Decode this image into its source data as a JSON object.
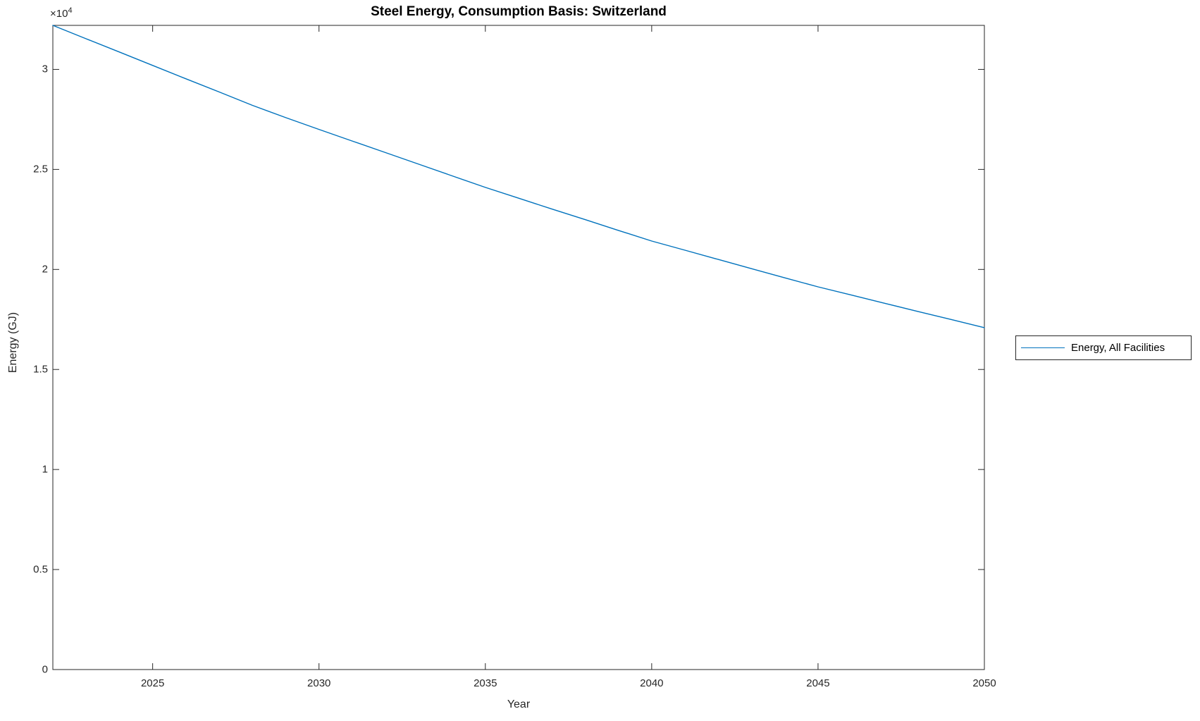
{
  "figure": {
    "y_multiplier_base": "×10",
    "y_multiplier_exp": "4"
  },
  "chart_data": {
    "type": "line",
    "title": "Steel Energy, Consumption Basis: Switzerland",
    "xlabel": "Year",
    "ylabel": "Energy (GJ)",
    "y_axis_multiplier": "×10^4",
    "xlim": [
      2022,
      2050
    ],
    "ylim": [
      0,
      32200
    ],
    "x_ticks": [
      2025,
      2030,
      2035,
      2040,
      2045,
      2050
    ],
    "y_ticks": [
      0,
      5000,
      10000,
      15000,
      20000,
      25000,
      30000
    ],
    "y_tick_labels": [
      "0",
      "0.5",
      "1",
      "1.5",
      "2",
      "2.5",
      "3"
    ],
    "y_tick_scale": 10000,
    "grid": false,
    "legend": {
      "position": "right-outside",
      "entries": [
        "Energy, All Facilities"
      ]
    },
    "series": [
      {
        "name": "Energy, All Facilities",
        "color": "#0072BD",
        "x": [
          2022,
          2023,
          2024,
          2025,
          2026,
          2027,
          2028,
          2029,
          2030,
          2031,
          2032,
          2033,
          2034,
          2035,
          2036,
          2037,
          2038,
          2039,
          2040,
          2041,
          2042,
          2043,
          2044,
          2045,
          2046,
          2047,
          2048,
          2049,
          2050
        ],
        "values": [
          32200,
          31530,
          30870,
          30200,
          29530,
          28870,
          28200,
          27590,
          27000,
          26420,
          25840,
          25260,
          24680,
          24100,
          23560,
          23020,
          22490,
          21950,
          21420,
          20960,
          20500,
          20040,
          19580,
          19130,
          18720,
          18310,
          17900,
          17500,
          17090
        ]
      }
    ]
  }
}
